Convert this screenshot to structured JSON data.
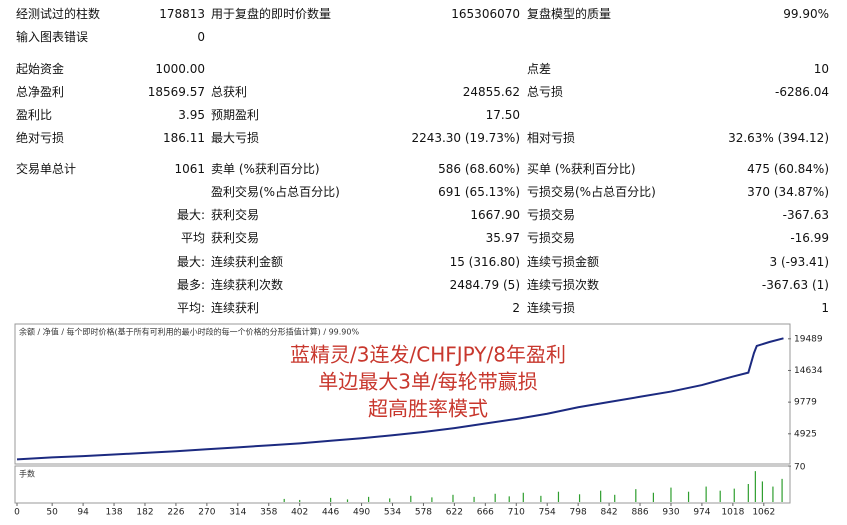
{
  "report": {
    "rows": [
      [
        "经测试过的柱数",
        "178813",
        "用于复盘的即时价数量",
        "165306070",
        "复盘模型的质量",
        "99.90%"
      ],
      [
        "输入图表错误",
        "0",
        null,
        null,
        null,
        null
      ],
      [
        "起始资金",
        "1000.00",
        null,
        null,
        "点差",
        "10"
      ],
      [
        "总净盈利",
        "18569.57",
        "总获利",
        "24855.62",
        "总亏损",
        "-6286.04"
      ],
      [
        "盈利比",
        "3.95",
        "预期盈利",
        "17.50",
        null,
        null
      ],
      [
        "绝对亏损",
        "186.11",
        "最大亏损",
        "2243.30 (19.73%)",
        "相对亏损",
        "32.63% (394.12)"
      ],
      [
        "交易单总计",
        "1061",
        "卖单 (%获利百分比)",
        "586 (68.60%)",
        "买单 (%获利百分比)",
        "475 (60.84%)"
      ],
      [
        null,
        null,
        "盈利交易(%占总百分比)",
        "691 (65.13%)",
        "亏损交易(%占总百分比)",
        "370 (34.87%)"
      ],
      [
        null,
        "最大:",
        "获利交易",
        "1667.90",
        "亏损交易",
        "-367.63"
      ],
      [
        null,
        "平均",
        "获利交易",
        "35.97",
        "亏损交易",
        "-16.99"
      ],
      [
        null,
        "最大:",
        "连续获利金额",
        "15 (316.80)",
        "连续亏损金额",
        "3 (-93.41)"
      ],
      [
        null,
        "最多:",
        "连续获利次数",
        "2484.79 (5)",
        "连续亏损次数",
        "-367.63 (1)"
      ],
      [
        null,
        "平均:",
        "连续获利",
        "2",
        "连续亏损",
        "1"
      ]
    ]
  },
  "chart_data": [
    {
      "type": "line",
      "title": "余额 / 净值 / 每个即时价格(基于所有可利用的最小时段的每一个价格的分形插值计算) / 99.90%",
      "annotations": [
        "蓝精灵/3连发/CHFJPY/8年盈利",
        "单边最大3单/每轮带赢损",
        "超高胜率模式"
      ],
      "x": [
        0,
        50,
        94,
        138,
        182,
        226,
        270,
        314,
        358,
        402,
        446,
        490,
        534,
        578,
        622,
        666,
        710,
        754,
        798,
        842,
        886,
        930,
        974,
        1018,
        1040,
        1048,
        1052,
        1070,
        1090
      ],
      "series": [
        {
          "color": "#1c2a80",
          "values": [
            1000,
            1300,
            1500,
            1750,
            2000,
            2250,
            2550,
            2850,
            3150,
            3450,
            3850,
            4250,
            4700,
            5200,
            5800,
            6500,
            7200,
            8000,
            9000,
            9800,
            10600,
            11400,
            12400,
            13700,
            14300,
            17300,
            18400,
            19000,
            19569.57
          ]
        }
      ],
      "xlim": [
        0,
        1095
      ],
      "xticks": [
        0,
        50,
        94,
        138,
        182,
        226,
        270,
        314,
        358,
        402,
        446,
        490,
        534,
        578,
        622,
        666,
        710,
        754,
        798,
        842,
        886,
        930,
        974,
        1018,
        1062
      ],
      "ylim": [
        600,
        21300
      ],
      "yticks": [
        4925,
        9779,
        14634,
        19489
      ]
    },
    {
      "type": "bar",
      "title": "手数",
      "x": [
        380,
        402,
        446,
        470,
        500,
        530,
        560,
        590,
        620,
        650,
        680,
        700,
        720,
        745,
        770,
        800,
        830,
        850,
        880,
        905,
        930,
        955,
        980,
        1000,
        1020,
        1040,
        1050,
        1060,
        1075,
        1088
      ],
      "values": [
        6,
        4,
        8,
        5,
        10,
        7,
        12,
        9,
        14,
        10,
        16,
        11,
        18,
        12,
        20,
        15,
        22,
        14,
        25,
        18,
        28,
        20,
        30,
        22,
        26,
        35,
        60,
        40,
        30,
        45
      ],
      "color": "#2e9e2e",
      "xlim": [
        0,
        1095
      ],
      "ylim": [
        0,
        70
      ],
      "yticks": [
        70
      ]
    }
  ]
}
